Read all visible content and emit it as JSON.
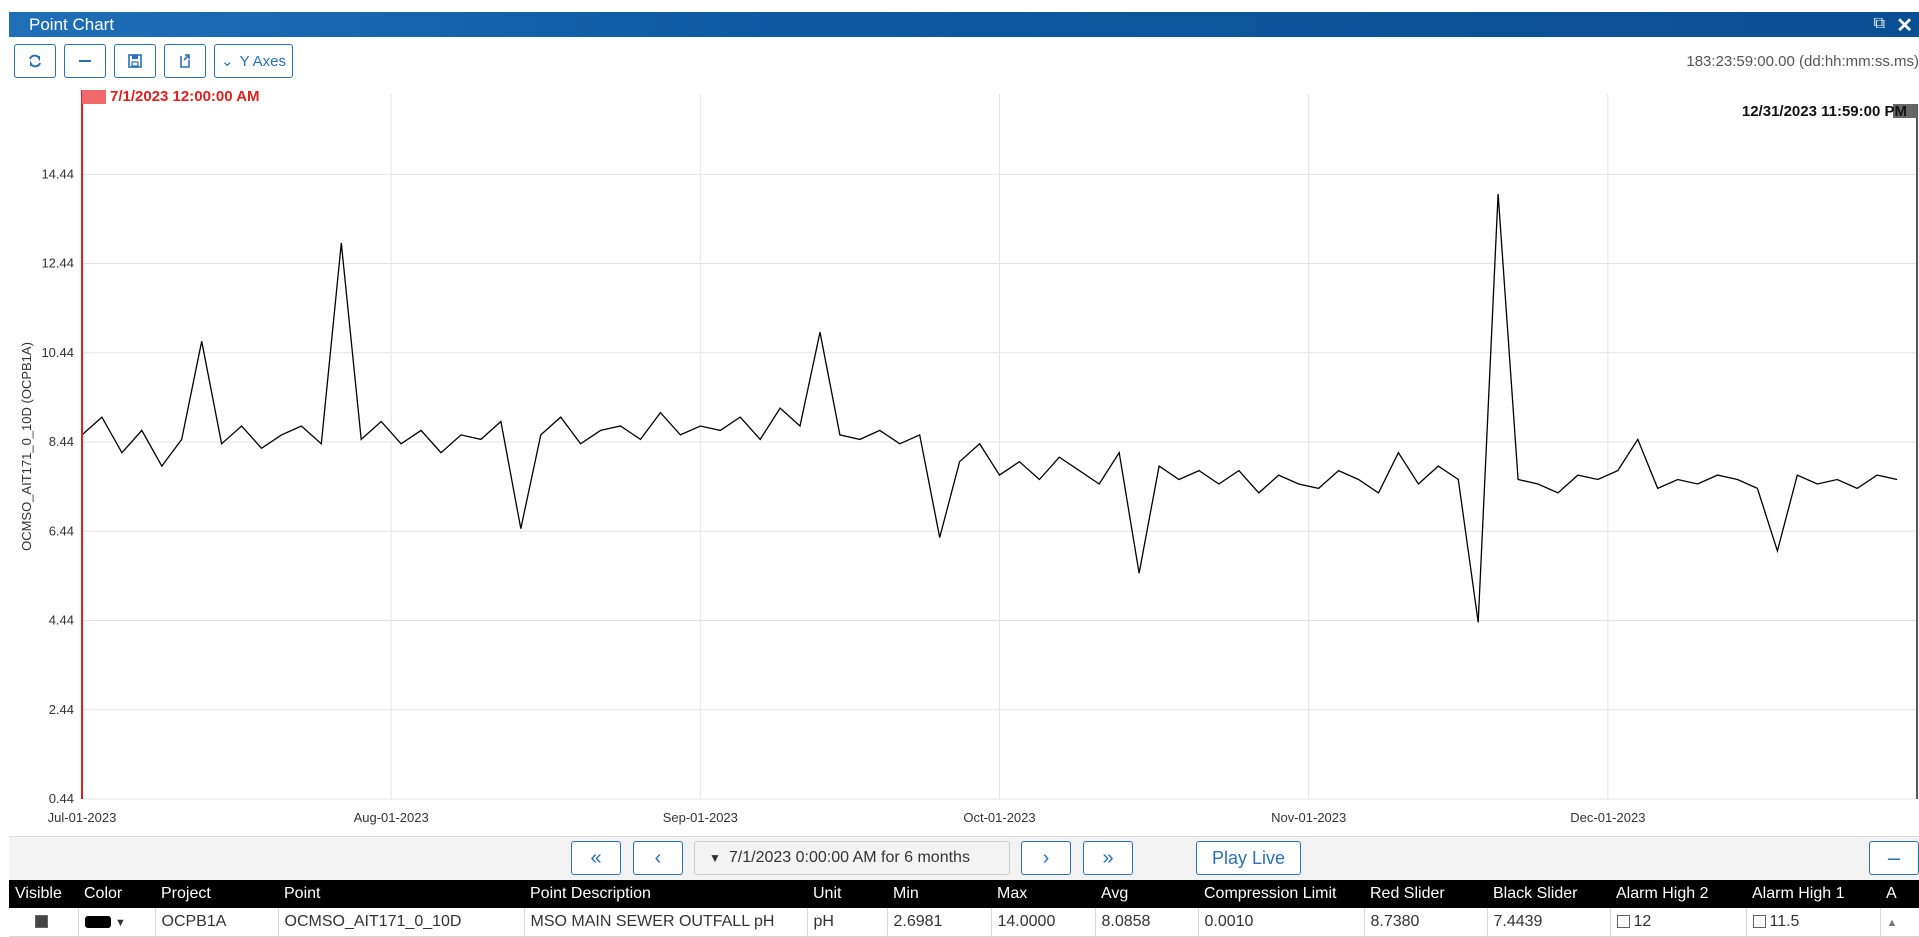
{
  "window": {
    "title": "Point Chart",
    "restore_icon": "restore-window-icon",
    "close_glyph": "✕"
  },
  "toolbar": {
    "y_axes_label": "Y Axes",
    "duration": "183:23:59:00.00 (dd:hh:mm:ss.ms)"
  },
  "chart_data": {
    "type": "line",
    "ylabel": "OCMSO_AIT171_0_10D (OCPB1A)",
    "ylim": [
      0.44,
      16.24
    ],
    "yticks": [
      0.44,
      2.44,
      4.44,
      6.44,
      8.44,
      10.44,
      12.44,
      14.44
    ],
    "xlim": [
      "2023-07-01 00:00",
      "2023-12-31 23:59"
    ],
    "xticks": [
      "Jul-01-2023",
      "Aug-01-2023",
      "Sep-01-2023",
      "Oct-01-2023",
      "Nov-01-2023",
      "Dec-01-2023"
    ],
    "grid": true,
    "red_slider_label": "7/1/2023 12:00:00 AM",
    "black_slider_label": "12/31/2023 11:59:00 PM",
    "series": [
      {
        "color": "#000000",
        "x": [
          "2023-07-01",
          "2023-07-03",
          "2023-07-05",
          "2023-07-07",
          "2023-07-09",
          "2023-07-11",
          "2023-07-13",
          "2023-07-15",
          "2023-07-17",
          "2023-07-19",
          "2023-07-21",
          "2023-07-23",
          "2023-07-25",
          "2023-07-27",
          "2023-07-29",
          "2023-07-31",
          "2023-08-02",
          "2023-08-04",
          "2023-08-06",
          "2023-08-08",
          "2023-08-10",
          "2023-08-12",
          "2023-08-14",
          "2023-08-16",
          "2023-08-18",
          "2023-08-20",
          "2023-08-22",
          "2023-08-24",
          "2023-08-26",
          "2023-08-28",
          "2023-08-30",
          "2023-09-01",
          "2023-09-03",
          "2023-09-05",
          "2023-09-07",
          "2023-09-09",
          "2023-09-11",
          "2023-09-13",
          "2023-09-15",
          "2023-09-17",
          "2023-09-19",
          "2023-09-21",
          "2023-09-23",
          "2023-09-25",
          "2023-09-27",
          "2023-09-29",
          "2023-10-01",
          "2023-10-03",
          "2023-10-05",
          "2023-10-07",
          "2023-10-09",
          "2023-10-11",
          "2023-10-13",
          "2023-10-15",
          "2023-10-17",
          "2023-10-19",
          "2023-10-21",
          "2023-10-23",
          "2023-10-25",
          "2023-10-27",
          "2023-10-29",
          "2023-10-31",
          "2023-11-02",
          "2023-11-04",
          "2023-11-06",
          "2023-11-08",
          "2023-11-10",
          "2023-11-12",
          "2023-11-14",
          "2023-11-16",
          "2023-11-18",
          "2023-11-20",
          "2023-11-22",
          "2023-11-24",
          "2023-11-26",
          "2023-11-28",
          "2023-11-30",
          "2023-12-02",
          "2023-12-04",
          "2023-12-06",
          "2023-12-08",
          "2023-12-10",
          "2023-12-12",
          "2023-12-14",
          "2023-12-16",
          "2023-12-18",
          "2023-12-20",
          "2023-12-22",
          "2023-12-24",
          "2023-12-26",
          "2023-12-28",
          "2023-12-30"
        ],
        "y": [
          8.6,
          9.0,
          8.2,
          8.7,
          7.9,
          8.5,
          10.7,
          8.4,
          8.8,
          8.3,
          8.6,
          8.8,
          8.4,
          12.9,
          8.5,
          8.9,
          8.4,
          8.7,
          8.2,
          8.6,
          8.5,
          8.9,
          6.5,
          8.6,
          9.0,
          8.4,
          8.7,
          8.8,
          8.5,
          9.1,
          8.6,
          8.8,
          8.7,
          9.0,
          8.5,
          9.2,
          8.8,
          10.9,
          8.6,
          8.5,
          8.7,
          8.4,
          8.6,
          6.3,
          8.0,
          8.4,
          7.7,
          8.0,
          7.6,
          8.1,
          7.8,
          7.5,
          8.2,
          5.5,
          7.9,
          7.6,
          7.8,
          7.5,
          7.8,
          7.3,
          7.7,
          7.5,
          7.4,
          7.8,
          7.6,
          7.3,
          8.2,
          7.5,
          7.9,
          7.6,
          4.4,
          14.0,
          7.6,
          7.5,
          7.3,
          7.7,
          7.6,
          7.8,
          8.5,
          7.4,
          7.6,
          7.5,
          7.7,
          7.6,
          7.4,
          6.0,
          7.7,
          7.5,
          7.6,
          7.4,
          7.7,
          7.6
        ]
      }
    ]
  },
  "nav": {
    "range_label": "7/1/2023 0:00:00 AM for 6 months",
    "play_live": "Play Live"
  },
  "grid": {
    "headers": [
      "Visible",
      "Color",
      "Project",
      "Point",
      "Point Description",
      "Unit",
      "Min",
      "Max",
      "Avg",
      "Compression Limit",
      "Red Slider",
      "Black Slider",
      "Alarm High 2",
      "Alarm High 1",
      "A"
    ],
    "row": {
      "project": "OCPB1A",
      "point": "OCMSO_AIT171_0_10D",
      "description": "MSO MAIN SEWER OUTFALL pH",
      "unit": "pH",
      "min": "2.6981",
      "max": "14.0000",
      "avg": "8.0858",
      "compression": "0.0010",
      "red_slider": "8.7380",
      "black_slider": "7.4439",
      "alarm_high_2": "12",
      "alarm_high_1": "11.5"
    }
  }
}
